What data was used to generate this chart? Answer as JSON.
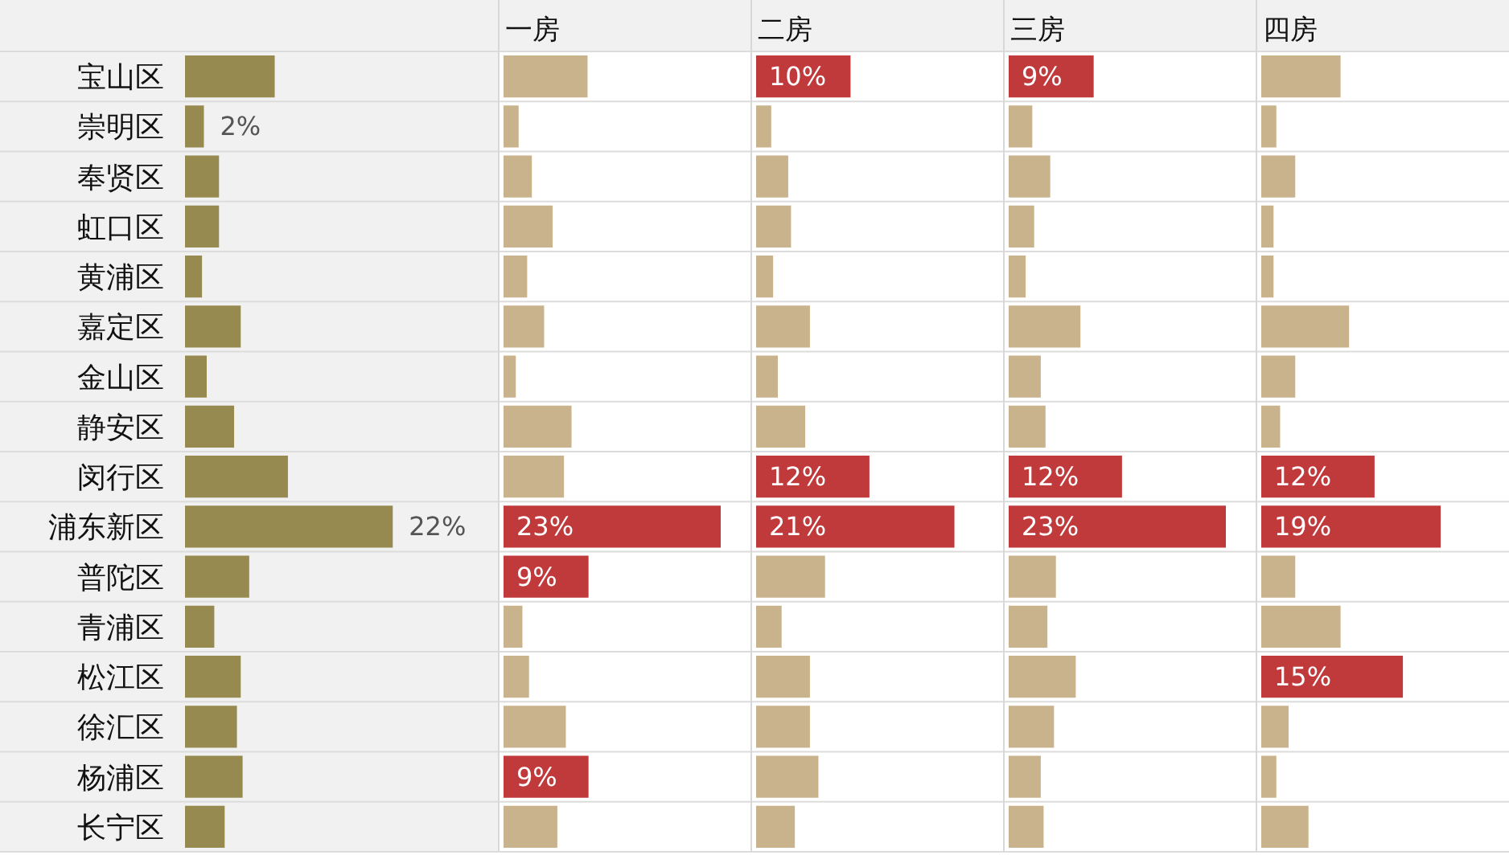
{
  "chart_data": [
    {
      "type": "bar",
      "orientation": "horizontal",
      "categories": [
        "宝山区",
        "崇明区",
        "奉贤区",
        "虹口区",
        "黄浦区",
        "嘉定区",
        "金山区",
        "静安区",
        "闵行区",
        "浦东新区",
        "普陀区",
        "青浦区",
        "松江区",
        "徐汇区",
        "杨浦区",
        "长宁区"
      ],
      "values": [
        9.5,
        2,
        3.6,
        3.6,
        1.8,
        5.9,
        2.3,
        5.2,
        10.9,
        22,
        6.8,
        3.1,
        5.9,
        5.5,
        6.1,
        4.2
      ],
      "value_labels": [
        null,
        "2%",
        null,
        null,
        null,
        null,
        null,
        null,
        null,
        "22%",
        null,
        null,
        null,
        null,
        null,
        null
      ],
      "color": "#968a50"
    },
    {
      "type": "bar",
      "orientation": "horizontal",
      "title": "一房",
      "categories": [
        null,
        null,
        null,
        null,
        null,
        null,
        null,
        null,
        null,
        null,
        null,
        null,
        null,
        null,
        null,
        null
      ],
      "values": [
        8.9,
        1.6,
        3.0,
        5.2,
        2.5,
        4.3,
        1.3,
        7.2,
        6.4,
        23,
        9,
        2.0,
        2.7,
        6.6,
        9,
        5.7
      ],
      "value_labels": [
        null,
        null,
        null,
        null,
        null,
        null,
        null,
        null,
        null,
        "23%",
        "9%",
        null,
        null,
        null,
        "9%",
        null
      ],
      "colors": [
        "#c9b38d",
        "#c9b38d",
        "#c9b38d",
        "#c9b38d",
        "#c9b38d",
        "#c9b38d",
        "#c9b38d",
        "#c9b38d",
        "#c9b38d",
        "#c0393b",
        "#c0393b",
        "#c9b38d",
        "#c9b38d",
        "#c9b38d",
        "#c0393b",
        "#c9b38d"
      ]
    },
    {
      "type": "bar",
      "orientation": "horizontal",
      "title": "二房",
      "categories": [
        null,
        null,
        null,
        null,
        null,
        null,
        null,
        null,
        null,
        null,
        null,
        null,
        null,
        null,
        null,
        null
      ],
      "values": [
        10,
        1.6,
        3.4,
        3.7,
        1.8,
        5.7,
        2.3,
        5.2,
        12,
        21,
        7.3,
        2.7,
        5.7,
        5.7,
        6.6,
        4.1
      ],
      "value_labels": [
        "10%",
        null,
        null,
        null,
        null,
        null,
        null,
        null,
        "12%",
        "21%",
        null,
        null,
        null,
        null,
        null,
        null
      ],
      "colors": [
        "#c0393b",
        "#c9b38d",
        "#c9b38d",
        "#c9b38d",
        "#c9b38d",
        "#c9b38d",
        "#c9b38d",
        "#c9b38d",
        "#c0393b",
        "#c0393b",
        "#c9b38d",
        "#c9b38d",
        "#c9b38d",
        "#c9b38d",
        "#c9b38d",
        "#c9b38d"
      ]
    },
    {
      "type": "bar",
      "orientation": "horizontal",
      "title": "三房",
      "categories": [
        null,
        null,
        null,
        null,
        null,
        null,
        null,
        null,
        null,
        null,
        null,
        null,
        null,
        null,
        null,
        null
      ],
      "values": [
        9,
        2.5,
        4.4,
        2.7,
        1.8,
        7.6,
        3.4,
        3.9,
        12,
        23,
        5.0,
        4.1,
        7.1,
        4.8,
        3.4,
        3.7
      ],
      "value_labels": [
        "9%",
        null,
        null,
        null,
        null,
        null,
        null,
        null,
        "12%",
        "23%",
        null,
        null,
        null,
        null,
        null,
        null
      ],
      "colors": [
        "#c0393b",
        "#c9b38d",
        "#c9b38d",
        "#c9b38d",
        "#c9b38d",
        "#c9b38d",
        "#c9b38d",
        "#c9b38d",
        "#c0393b",
        "#c0393b",
        "#c9b38d",
        "#c9b38d",
        "#c9b38d",
        "#c9b38d",
        "#c9b38d",
        "#c9b38d"
      ]
    },
    {
      "type": "bar",
      "orientation": "horizontal",
      "title": "四房",
      "categories": [
        null,
        null,
        null,
        null,
        null,
        null,
        null,
        null,
        null,
        null,
        null,
        null,
        null,
        null,
        null,
        null
      ],
      "values": [
        8.4,
        1.6,
        3.6,
        1.3,
        1.3,
        9.3,
        3.6,
        2.0,
        12,
        19,
        3.6,
        8.4,
        15,
        2.9,
        1.6,
        5.0
      ],
      "value_labels": [
        null,
        null,
        null,
        null,
        null,
        null,
        null,
        null,
        "12%",
        "19%",
        null,
        null,
        "15%",
        null,
        null,
        null
      ],
      "colors": [
        "#c9b38d",
        "#c9b38d",
        "#c9b38d",
        "#c9b38d",
        "#c9b38d",
        "#c9b38d",
        "#c9b38d",
        "#c9b38d",
        "#c0393b",
        "#c0393b",
        "#c9b38d",
        "#c9b38d",
        "#c0393b",
        "#c9b38d",
        "#c9b38d",
        "#c9b38d"
      ]
    }
  ]
}
